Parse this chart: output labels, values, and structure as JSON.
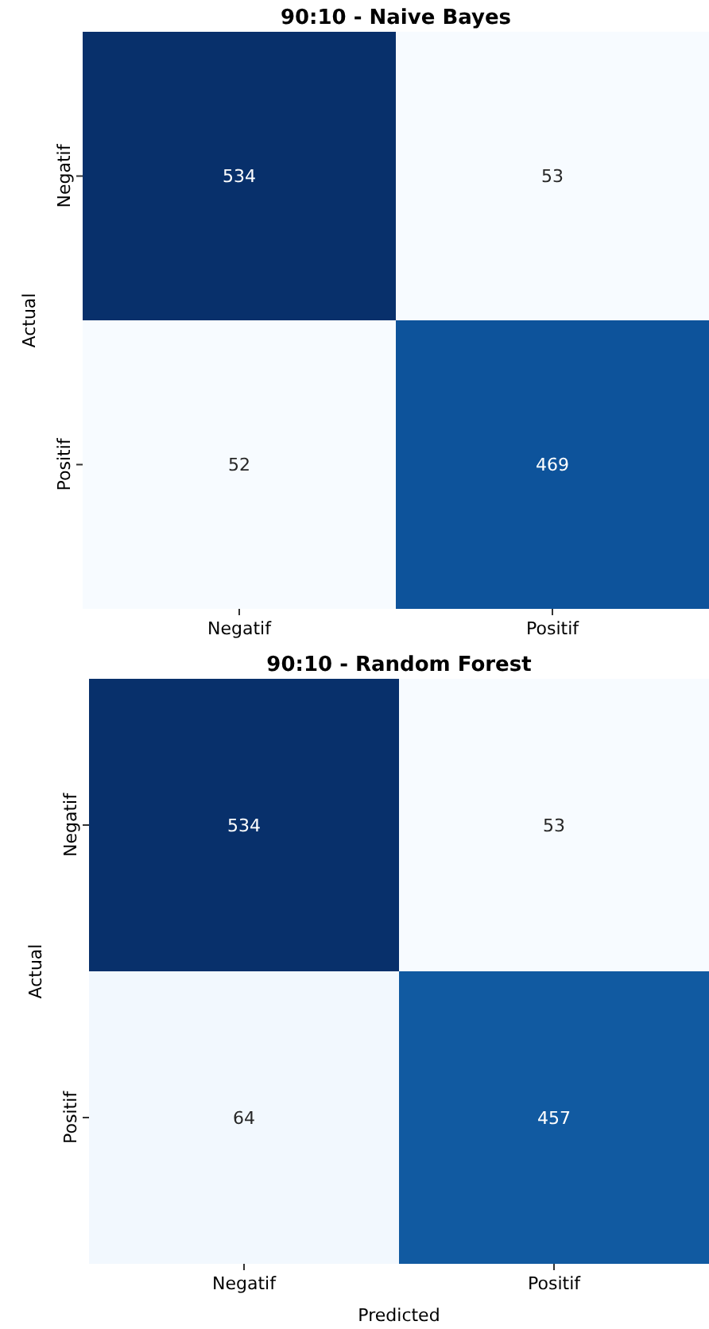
{
  "chart_data": [
    {
      "type": "heatmap",
      "data_labels": true,
      "title": "90:10 - Naive Bayes",
      "ylabel": "Actual",
      "categories": [
        "Negatif",
        "Positif"
      ],
      "y_categories": [
        "Negatif",
        "Positif"
      ],
      "cells": [
        [
          534,
          53
        ],
        [
          52,
          469
        ]
      ]
    },
    {
      "type": "heatmap",
      "data_labels": true,
      "title": "90:10 - Random Forest",
      "xlabel": "Predicted",
      "ylabel": "Actual",
      "categories": [
        "Negatif",
        "Positif"
      ],
      "y_categories": [
        "Negatif",
        "Positif"
      ],
      "cells": [
        [
          534,
          53
        ],
        [
          64,
          457
        ]
      ]
    }
  ]
}
